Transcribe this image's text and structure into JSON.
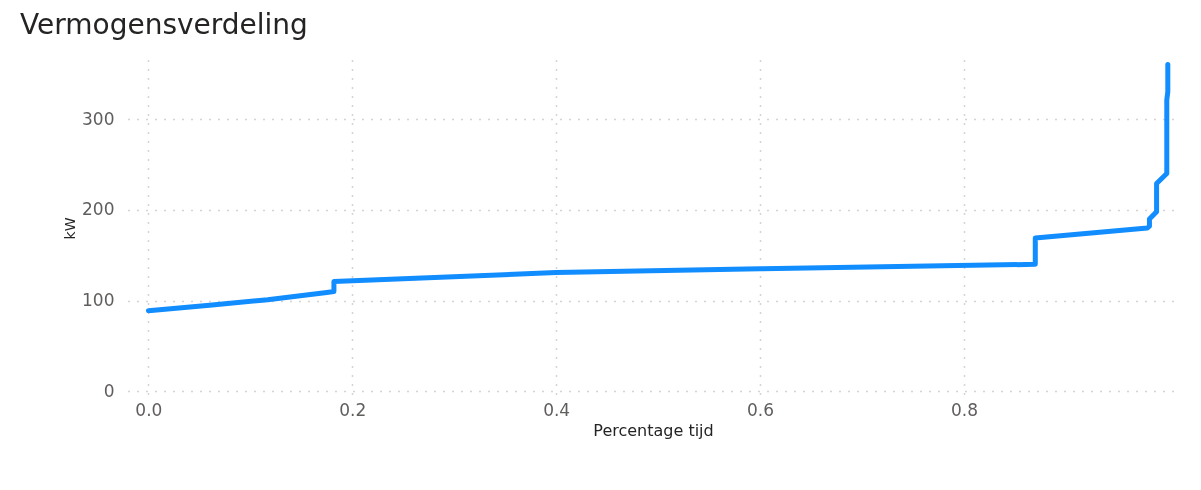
{
  "chart_data": {
    "type": "line",
    "title": "Vermogensverdeling",
    "xlabel": "Percentage tijd",
    "ylabel": "kW",
    "x": [
      0,
      0.06,
      0.117,
      0.175,
      0.182,
      0.182,
      0.4,
      0.6,
      0.87,
      0.87,
      0.98,
      0.982,
      0.982,
      0.989,
      0.989,
      0.999,
      0.999,
      1.0,
      1.0
    ],
    "series": [
      {
        "color": "#118dff",
        "values": [
          89,
          95,
          101,
          109,
          110,
          121,
          131,
          135,
          140,
          169,
          180,
          182,
          190,
          198,
          229,
          240,
          321,
          330,
          360
        ]
      }
    ],
    "xlim": [
      -0.02,
      1.01
    ],
    "ylim": [
      -5,
      365
    ],
    "xticks": [
      {
        "value": 0,
        "label": "0.0"
      },
      0.2,
      0.4,
      0.6,
      0.8
    ],
    "yticks": [
      0,
      100,
      200,
      300
    ],
    "grid": true,
    "marker": "none",
    "line_style": "solid"
  }
}
